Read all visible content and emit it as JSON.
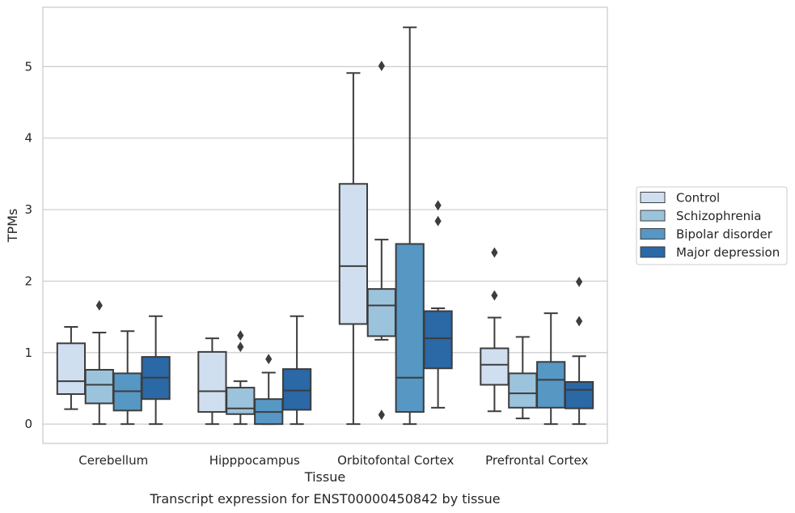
{
  "chart_data": {
    "type": "box",
    "caption": "Transcript expression for ENST00000450842 by tissue",
    "xlabel": "Tissue",
    "ylabel": "TPMs",
    "ylim": [
      -0.27,
      5.83
    ],
    "yticks": [
      0,
      1,
      2,
      3,
      4,
      5
    ],
    "grid": true,
    "legend_position": "right",
    "categories": [
      "Cerebellum",
      "Hipppocampus",
      "Orbitofontal Cortex",
      "Prefrontal Cortex"
    ],
    "series": [
      {
        "name": "Control",
        "color": "#d0dff0",
        "boxes": [
          {
            "whisker_low": 0.21,
            "q1": 0.42,
            "median": 0.6,
            "q3": 1.13,
            "whisker_high": 1.36,
            "outliers": []
          },
          {
            "whisker_low": 0.0,
            "q1": 0.17,
            "median": 0.46,
            "q3": 1.01,
            "whisker_high": 1.2,
            "outliers": []
          },
          {
            "whisker_low": 0.0,
            "q1": 1.4,
            "median": 2.21,
            "q3": 3.36,
            "whisker_high": 4.91,
            "outliers": []
          },
          {
            "whisker_low": 0.18,
            "q1": 0.55,
            "median": 0.83,
            "q3": 1.06,
            "whisker_high": 1.49,
            "outliers": [
              1.8,
              2.4
            ]
          }
        ]
      },
      {
        "name": "Schizophrenia",
        "color": "#9cc3dc",
        "boxes": [
          {
            "whisker_low": 0.0,
            "q1": 0.29,
            "median": 0.55,
            "q3": 0.76,
            "whisker_high": 1.28,
            "outliers": [
              1.66
            ]
          },
          {
            "whisker_low": 0.0,
            "q1": 0.14,
            "median": 0.22,
            "q3": 0.51,
            "whisker_high": 0.6,
            "outliers": [
              1.08,
              1.24
            ]
          },
          {
            "whisker_low": 1.18,
            "q1": 1.23,
            "median": 1.66,
            "q3": 1.89,
            "whisker_high": 2.58,
            "outliers": [
              5.01,
              0.13
            ]
          },
          {
            "whisker_low": 0.08,
            "q1": 0.23,
            "median": 0.43,
            "q3": 0.71,
            "whisker_high": 1.22,
            "outliers": []
          }
        ]
      },
      {
        "name": "Bipolar disorder",
        "color": "#5697c4",
        "boxes": [
          {
            "whisker_low": 0.0,
            "q1": 0.19,
            "median": 0.46,
            "q3": 0.71,
            "whisker_high": 1.3,
            "outliers": []
          },
          {
            "whisker_low": 0.0,
            "q1": 0.0,
            "median": 0.17,
            "q3": 0.35,
            "whisker_high": 0.72,
            "outliers": [
              0.91
            ]
          },
          {
            "whisker_low": 0.0,
            "q1": 0.17,
            "median": 0.65,
            "q3": 2.52,
            "whisker_high": 5.55,
            "outliers": []
          },
          {
            "whisker_low": 0.0,
            "q1": 0.23,
            "median": 0.62,
            "q3": 0.87,
            "whisker_high": 1.55,
            "outliers": []
          }
        ]
      },
      {
        "name": "Major depression",
        "color": "#2a68a6",
        "boxes": [
          {
            "whisker_low": 0.0,
            "q1": 0.35,
            "median": 0.65,
            "q3": 0.94,
            "whisker_high": 1.51,
            "outliers": []
          },
          {
            "whisker_low": 0.0,
            "q1": 0.2,
            "median": 0.47,
            "q3": 0.77,
            "whisker_high": 1.51,
            "outliers": []
          },
          {
            "whisker_low": 0.23,
            "q1": 0.78,
            "median": 1.2,
            "q3": 1.58,
            "whisker_high": 1.62,
            "outliers": [
              2.84,
              3.06
            ]
          },
          {
            "whisker_low": 0.0,
            "q1": 0.22,
            "median": 0.48,
            "q3": 0.59,
            "whisker_high": 0.95,
            "outliers": [
              1.44,
              1.99
            ]
          }
        ]
      }
    ]
  }
}
